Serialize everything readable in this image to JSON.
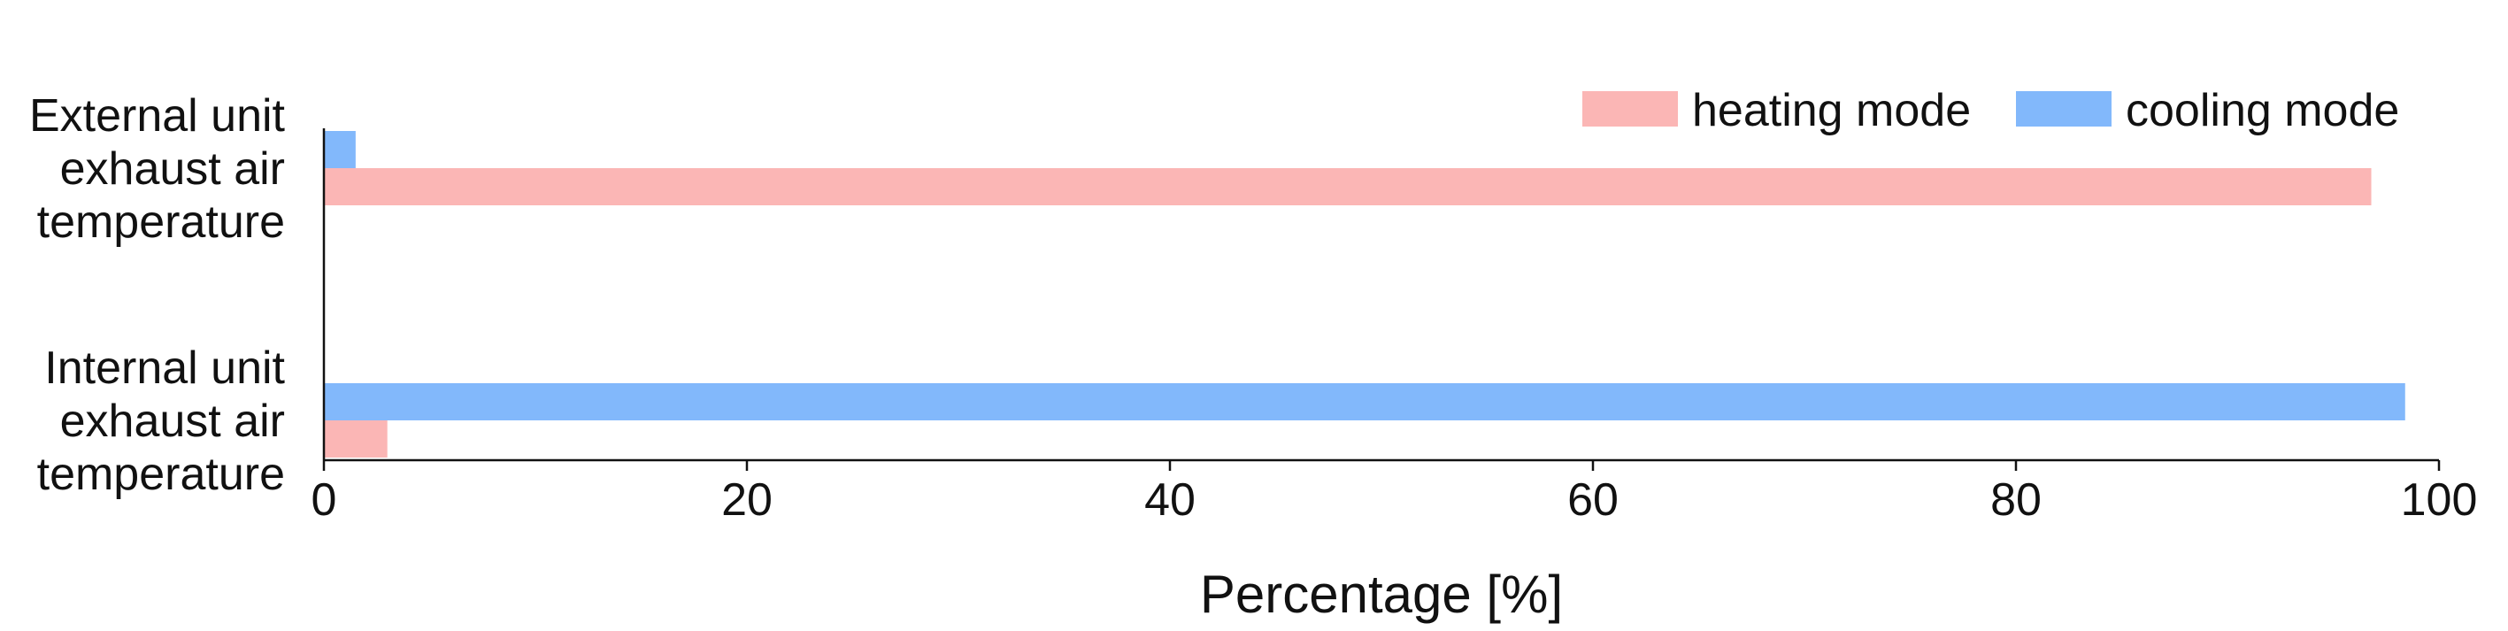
{
  "chart_data": {
    "type": "bar",
    "orientation": "horizontal",
    "title": "",
    "xlabel": "Percentage [%]",
    "ylabel": "",
    "xlim": [
      0,
      100
    ],
    "xticks": [
      0,
      20,
      40,
      60,
      80,
      100
    ],
    "grid": false,
    "legend_position": "top-right",
    "categories": [
      [
        "External unit",
        "exhaust air",
        "temperature"
      ],
      [
        "Internal unit",
        "exhaust air",
        "temperature"
      ]
    ],
    "series": [
      {
        "name": "heating mode",
        "color": "#FBB6B5",
        "values": [
          96.8,
          3.0
        ]
      },
      {
        "name": "cooling mode",
        "color": "#82B8FB",
        "values": [
          1.5,
          98.4
        ]
      }
    ]
  }
}
